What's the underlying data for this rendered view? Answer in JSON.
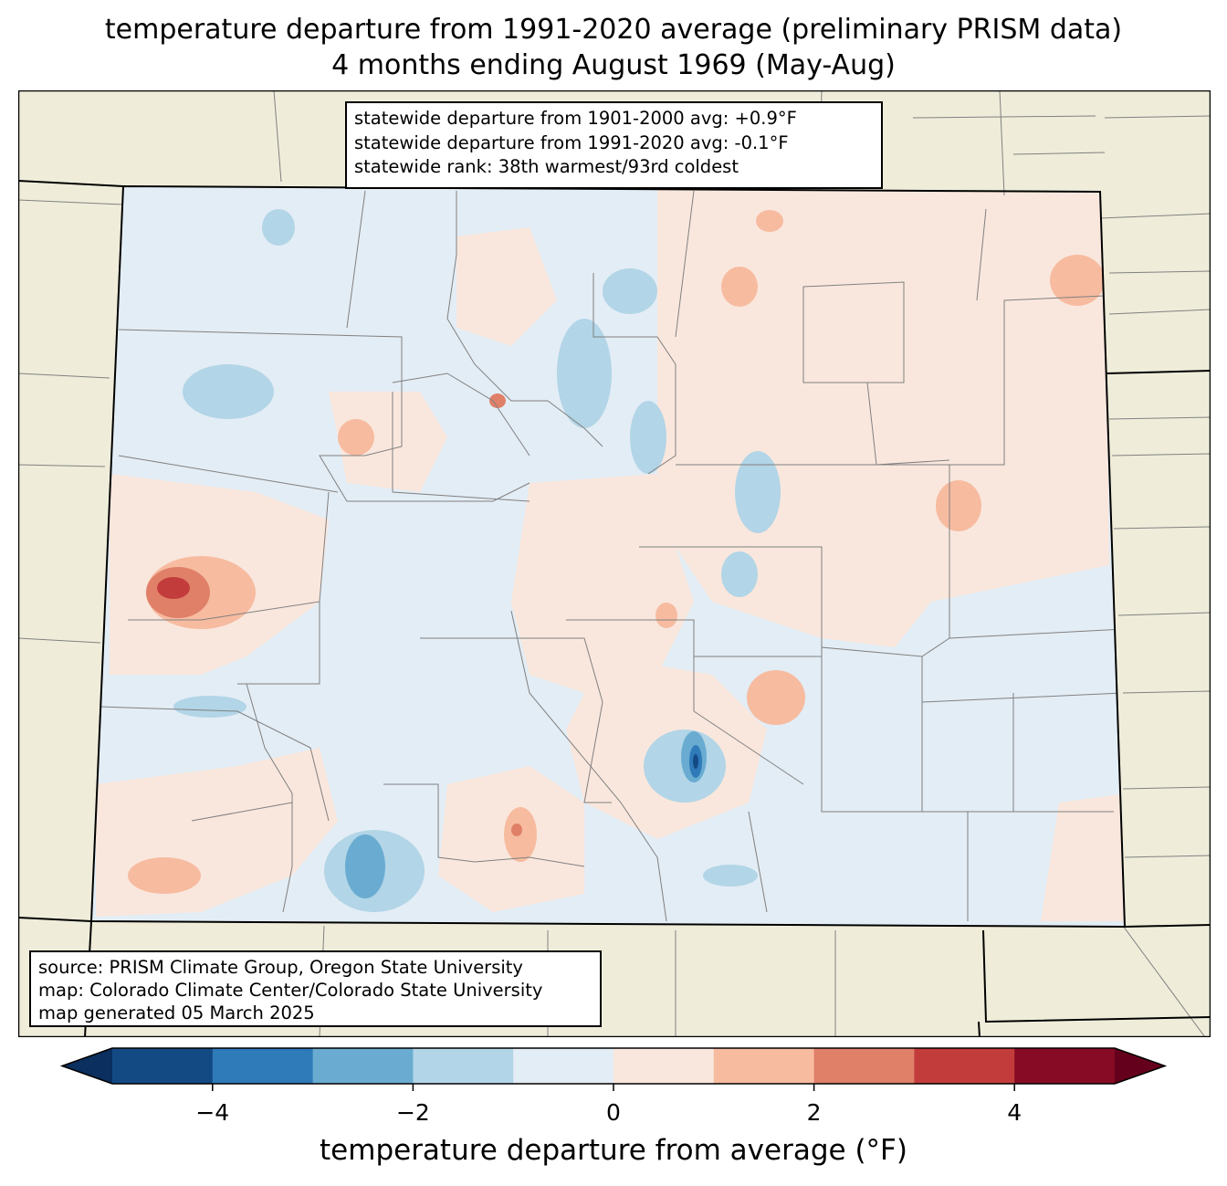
{
  "title": {
    "line1": "temperature departure from 1991-2020 average (preliminary PRISM data)",
    "line2": "4 months ending August 1969 (May-Aug)"
  },
  "stats": {
    "line1": "statewide departure from 1901-2000 avg: +0.9°F",
    "line2": "statewide departure from 1991-2020 avg: -0.1°F",
    "line3": "statewide rank: 38th warmest/93rd coldest"
  },
  "source": {
    "line1": "source: PRISM Climate Group, Oregon State University",
    "line2": "map: Colorado Climate Center/Colorado State University",
    "line3": "map generated 05 March 2025"
  },
  "colorbar": {
    "label": "temperature departure from average (°F)",
    "ticks": [
      {
        "value": -4,
        "label": "−4"
      },
      {
        "value": -2,
        "label": "−2"
      },
      {
        "value": 0,
        "label": "0"
      },
      {
        "value": 2,
        "label": "2"
      },
      {
        "value": 4,
        "label": "4"
      }
    ],
    "range": [
      -5,
      5
    ],
    "bins": [
      {
        "from": -5,
        "to": -4,
        "color": "#144a84"
      },
      {
        "from": -4,
        "to": -3,
        "color": "#2f7ab8"
      },
      {
        "from": -3,
        "to": -2,
        "color": "#6aacd1"
      },
      {
        "from": -2,
        "to": -1,
        "color": "#b2d5e7"
      },
      {
        "from": -1,
        "to": 0,
        "color": "#e3edf5"
      },
      {
        "from": 0,
        "to": 1,
        "color": "#f9e7dd"
      },
      {
        "from": 1,
        "to": 2,
        "color": "#f7bba0"
      },
      {
        "from": 2,
        "to": 3,
        "color": "#e08069"
      },
      {
        "from": 3,
        "to": 4,
        "color": "#c33c3c"
      },
      {
        "from": 4,
        "to": 5,
        "color": "#870b25"
      }
    ],
    "under_color": "#0b2f5e",
    "over_color": "#65001c"
  },
  "colors": {
    "land_outside": "#efedda",
    "state_border": "#000000",
    "county_line": "#808080"
  }
}
